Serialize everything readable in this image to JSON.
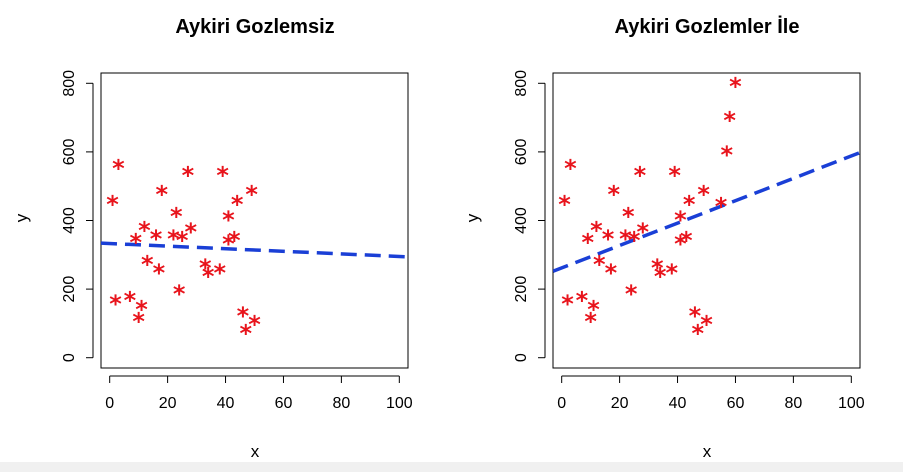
{
  "chart_data": [
    {
      "type": "scatter",
      "title": "Aykiri Gozlemsiz",
      "xlabel": "x",
      "ylabel": "y",
      "xlim": [
        -3,
        103
      ],
      "ylim": [
        -30,
        830
      ],
      "xticks": [
        0,
        20,
        40,
        60,
        80,
        100
      ],
      "yticks": [
        0,
        200,
        400,
        600,
        800
      ],
      "x_tick_labels": [
        "0",
        "20",
        "40",
        "60",
        "80",
        "100"
      ],
      "y_tick_labels": [
        "0",
        "200",
        "400",
        "600",
        "800"
      ],
      "grid": false,
      "point_symbol": "*",
      "point_color": "#e8141c",
      "line_color": "#1a3fd6",
      "series": [
        {
          "kind": "points",
          "points": [
            [
              1,
              455
            ],
            [
              3,
              560
            ],
            [
              2,
              165
            ],
            [
              7,
              175
            ],
            [
              9,
              345
            ],
            [
              11,
              150
            ],
            [
              10,
              115
            ],
            [
              12,
              380
            ],
            [
              13,
              280
            ],
            [
              16,
              355
            ],
            [
              17,
              255
            ],
            [
              18,
              485
            ],
            [
              23,
              420
            ],
            [
              22,
              355
            ],
            [
              25,
              350
            ],
            [
              24,
              195
            ],
            [
              27,
              540
            ],
            [
              28,
              375
            ],
            [
              33,
              270
            ],
            [
              34,
              245
            ],
            [
              38,
              255
            ],
            [
              39,
              540
            ],
            [
              41,
              410
            ],
            [
              41,
              340
            ],
            [
              43,
              350
            ],
            [
              44,
              455
            ],
            [
              46,
              130
            ],
            [
              47,
              80
            ],
            [
              49,
              485
            ],
            [
              50,
              105
            ]
          ]
        },
        {
          "kind": "fit-line",
          "x": [
            -3,
            103
          ],
          "y": [
            334,
            294
          ]
        }
      ]
    },
    {
      "type": "scatter",
      "title": "Aykiri Gozlemler İle",
      "xlabel": "x",
      "ylabel": "y",
      "xlim": [
        -3,
        103
      ],
      "ylim": [
        -30,
        830
      ],
      "xticks": [
        0,
        20,
        40,
        60,
        80,
        100
      ],
      "yticks": [
        0,
        200,
        400,
        600,
        800
      ],
      "x_tick_labels": [
        "0",
        "20",
        "40",
        "60",
        "80",
        "100"
      ],
      "y_tick_labels": [
        "0",
        "200",
        "400",
        "600",
        "800"
      ],
      "grid": false,
      "point_symbol": "*",
      "point_color": "#e8141c",
      "line_color": "#1a3fd6",
      "series": [
        {
          "kind": "points",
          "points": [
            [
              1,
              455
            ],
            [
              3,
              560
            ],
            [
              2,
              165
            ],
            [
              7,
              175
            ],
            [
              9,
              345
            ],
            [
              11,
              150
            ],
            [
              10,
              115
            ],
            [
              12,
              380
            ],
            [
              13,
              280
            ],
            [
              16,
              355
            ],
            [
              17,
              255
            ],
            [
              18,
              485
            ],
            [
              23,
              420
            ],
            [
              22,
              355
            ],
            [
              25,
              350
            ],
            [
              24,
              195
            ],
            [
              27,
              540
            ],
            [
              28,
              375
            ],
            [
              33,
              270
            ],
            [
              34,
              245
            ],
            [
              38,
              255
            ],
            [
              39,
              540
            ],
            [
              41,
              410
            ],
            [
              41,
              340
            ],
            [
              43,
              350
            ],
            [
              44,
              455
            ],
            [
              46,
              130
            ],
            [
              47,
              80
            ],
            [
              49,
              485
            ],
            [
              50,
              105
            ],
            [
              55,
              450
            ],
            [
              57,
              600
            ],
            [
              58,
              700
            ],
            [
              60,
              800
            ]
          ]
        },
        {
          "kind": "fit-line",
          "x": [
            -3,
            103
          ],
          "y": [
            252,
            598
          ]
        }
      ]
    }
  ]
}
